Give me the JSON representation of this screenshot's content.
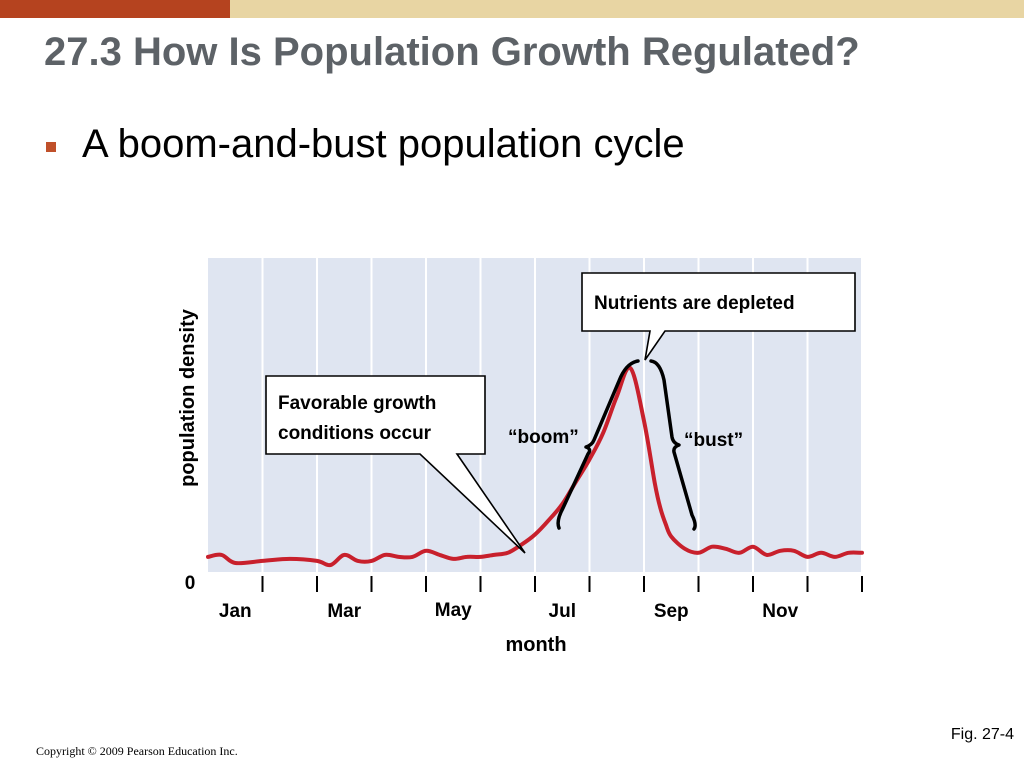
{
  "slide": {
    "title": "27.3 How Is Population Growth Regulated?",
    "bullet": "A boom-and-bust population cycle",
    "fig_label": "Fig. 27-4",
    "copyright": "Copyright © 2009 Pearson Education Inc."
  },
  "colors": {
    "accent_bar": "#b5431f",
    "top_bar": "#e8d5a3",
    "title_text": "#5d6267",
    "bullet_marker": "#c0502a",
    "plot_background": "#dfe5f1",
    "curve": "#c8202c"
  },
  "chart_data": {
    "type": "line",
    "title": "",
    "xlabel": "month",
    "ylabel": "population density",
    "x_tick_labels": [
      "Jan",
      "Mar",
      "May",
      "Jul",
      "Sep",
      "Nov"
    ],
    "y_tick_labels": [
      "0"
    ],
    "xlim": [
      0,
      12
    ],
    "ylim": [
      0,
      100
    ],
    "grid": true,
    "series": [
      {
        "x": [
          0,
          0.25,
          0.5,
          1.0,
          1.5,
          2.0,
          2.25,
          2.5,
          2.75,
          3.0,
          3.25,
          3.5,
          3.75,
          4.0,
          4.25,
          4.5,
          4.75,
          5.0,
          5.25,
          5.5,
          5.75,
          6.0,
          6.25,
          6.5,
          6.75,
          7.0,
          7.25,
          7.5,
          7.75,
          8.0,
          8.2,
          8.3,
          8.4,
          8.5,
          8.75,
          9.0,
          9.25,
          9.5,
          9.75,
          10.0,
          10.25,
          10.5,
          10.75,
          11.0,
          11.25,
          11.5,
          11.75,
          12.0
        ],
        "y": [
          4,
          5,
          1,
          2,
          3,
          2,
          0,
          5,
          2,
          2,
          5,
          4,
          4,
          7,
          5,
          3,
          4,
          4,
          5,
          6,
          10,
          15,
          22,
          30,
          41,
          52,
          65,
          83,
          97,
          71,
          40,
          28,
          20,
          14,
          8,
          6,
          9,
          8,
          6,
          9,
          5,
          7,
          7,
          4,
          6,
          4,
          6,
          6
        ]
      }
    ],
    "annotations": [
      {
        "text_lines": [
          "Favorable growth",
          "conditions occur"
        ]
      },
      {
        "text": "Nutrients are depleted"
      },
      {
        "text": "“boom”"
      },
      {
        "text": "“bust”"
      }
    ]
  }
}
